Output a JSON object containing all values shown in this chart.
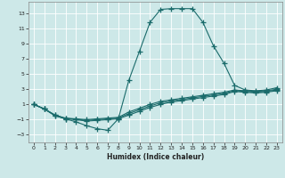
{
  "xlabel": "Humidex (Indice chaleur)",
  "bg_color": "#cde8e8",
  "line_color": "#1a6b6b",
  "grid_color": "#ffffff",
  "xlim": [
    -0.5,
    23.5
  ],
  "ylim": [
    -4,
    14.5
  ],
  "xticks": [
    0,
    1,
    2,
    3,
    4,
    5,
    6,
    7,
    8,
    9,
    10,
    11,
    12,
    13,
    14,
    15,
    16,
    17,
    18,
    19,
    20,
    21,
    22,
    23
  ],
  "yticks": [
    -3,
    -1,
    1,
    3,
    5,
    7,
    9,
    11,
    13
  ],
  "line1_x": [
    0,
    1,
    2,
    3,
    4,
    5,
    6,
    7,
    8,
    9,
    10,
    11,
    12,
    13,
    14,
    15,
    16,
    17,
    18,
    19,
    20,
    21,
    22,
    23
  ],
  "line1_y": [
    1.0,
    0.4,
    -0.4,
    -0.9,
    -1.3,
    -1.8,
    -2.2,
    -2.4,
    -0.9,
    4.2,
    8.0,
    11.8,
    13.5,
    13.6,
    13.6,
    13.6,
    11.8,
    8.7,
    6.4,
    3.5,
    2.9,
    2.8,
    2.9,
    3.2
  ],
  "line2_x": [
    0,
    1,
    2,
    3,
    4,
    5,
    6,
    7,
    8,
    9,
    10,
    11,
    12,
    13,
    14,
    15,
    16,
    17,
    18,
    19,
    20,
    21,
    22,
    23
  ],
  "line2_y": [
    1.0,
    0.4,
    -0.4,
    -0.8,
    -0.9,
    -1.0,
    -0.9,
    -0.8,
    -0.7,
    0.0,
    0.5,
    1.0,
    1.4,
    1.6,
    1.8,
    2.0,
    2.2,
    2.4,
    2.6,
    2.9,
    2.8,
    2.7,
    2.8,
    3.0
  ],
  "line3_x": [
    0,
    1,
    2,
    3,
    4,
    5,
    6,
    7,
    8,
    9,
    10,
    11,
    12,
    13,
    14,
    15,
    16,
    17,
    18,
    19,
    20,
    21,
    22,
    23
  ],
  "line3_y": [
    1.0,
    0.4,
    -0.5,
    -0.9,
    -1.0,
    -1.2,
    -1.1,
    -1.0,
    -0.9,
    -0.4,
    0.1,
    0.6,
    1.0,
    1.3,
    1.5,
    1.7,
    1.9,
    2.1,
    2.3,
    2.7,
    2.6,
    2.5,
    2.6,
    2.8
  ],
  "line4_x": [
    0,
    1,
    2,
    3,
    4,
    5,
    6,
    7,
    8,
    9,
    10,
    11,
    12,
    13,
    14,
    15,
    16,
    17,
    18,
    19,
    20,
    21,
    22,
    23
  ],
  "line4_y": [
    1.0,
    0.4,
    -0.45,
    -0.85,
    -0.95,
    -1.1,
    -1.0,
    -0.9,
    -0.8,
    -0.2,
    0.3,
    0.8,
    1.2,
    1.45,
    1.65,
    1.85,
    2.05,
    2.25,
    2.45,
    2.8,
    2.7,
    2.6,
    2.7,
    2.9
  ]
}
